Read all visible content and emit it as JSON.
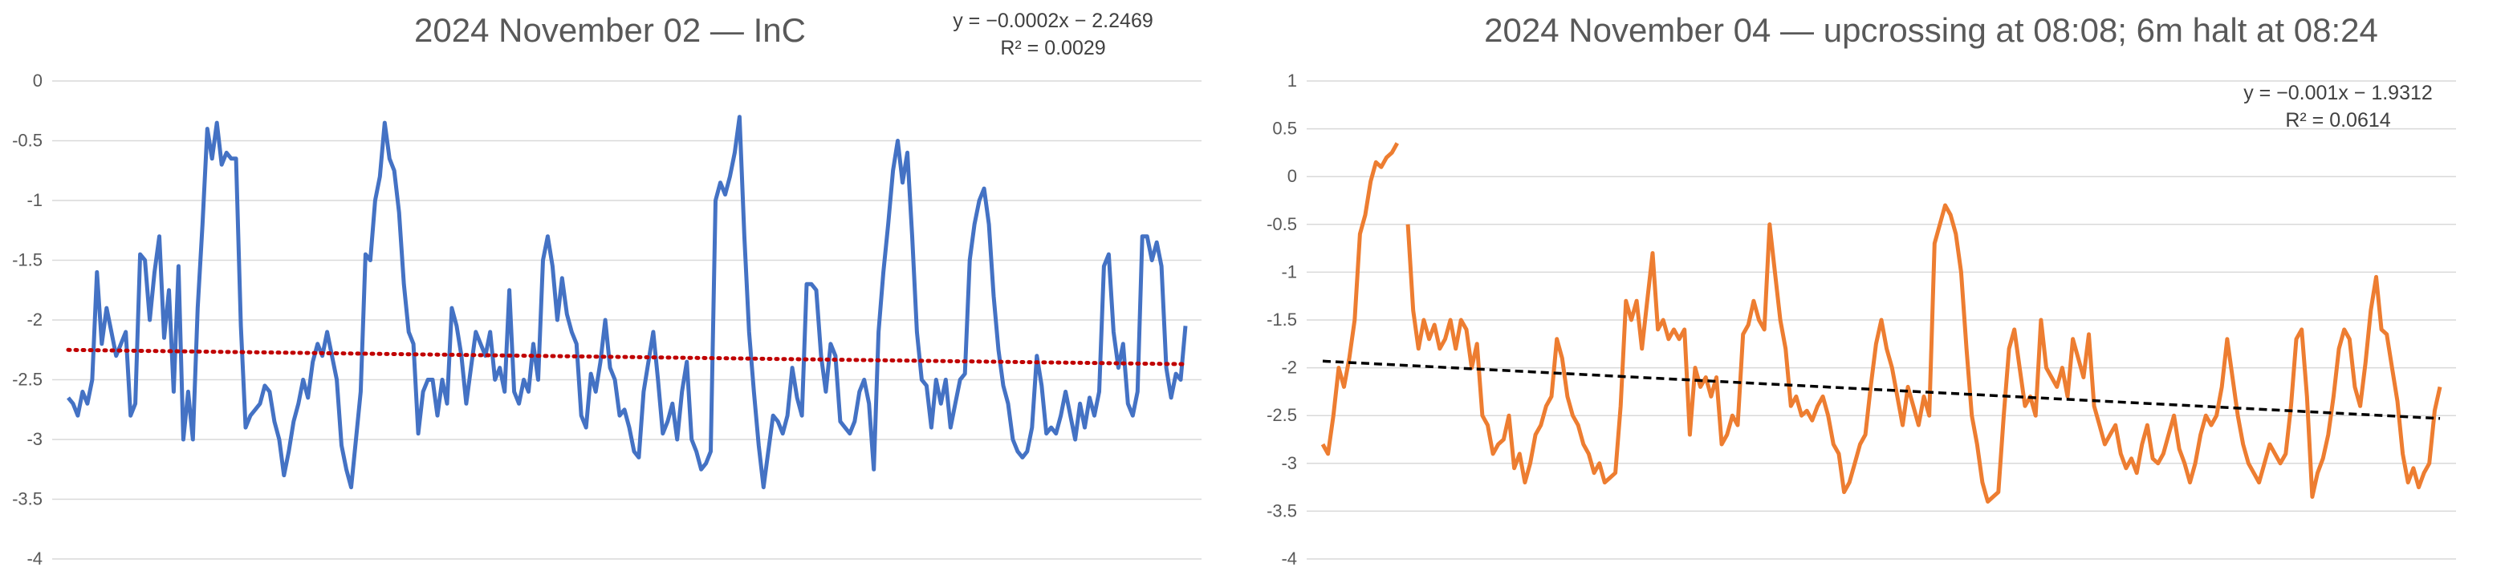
{
  "chart_data": [
    {
      "type": "line",
      "title": "2024 November 02 — InC",
      "xlabel": "",
      "ylabel": "",
      "ylim": [
        -4,
        0
      ],
      "yticks": [
        "0",
        "-0.5",
        "-1",
        "-1.5",
        "-2",
        "-2.5",
        "-3",
        "-3.5",
        "-4"
      ],
      "grid": true,
      "legend": "none",
      "series": [
        {
          "color": "#4472c4",
          "values": [
            -2.65,
            -2.7,
            -2.8,
            -2.6,
            -2.7,
            -2.5,
            -1.6,
            -2.2,
            -1.9,
            -2.1,
            -2.3,
            -2.2,
            -2.1,
            -2.8,
            -2.7,
            -1.45,
            -1.5,
            -2.0,
            -1.6,
            -1.3,
            -2.15,
            -1.75,
            -2.6,
            -1.55,
            -3.0,
            -2.6,
            -3.0,
            -1.9,
            -1.2,
            -0.4,
            -0.65,
            -0.35,
            -0.7,
            -0.6,
            -0.65,
            -0.65,
            -2.05,
            -2.9,
            -2.8,
            -2.75,
            -2.7,
            -2.55,
            -2.6,
            -2.85,
            -3.0,
            -3.3,
            -3.1,
            -2.85,
            -2.7,
            -2.5,
            -2.65,
            -2.35,
            -2.2,
            -2.3,
            -2.1,
            -2.3,
            -2.5,
            -3.05,
            -3.25,
            -3.4,
            -3.0,
            -2.6,
            -1.45,
            -1.5,
            -1.0,
            -0.8,
            -0.35,
            -0.65,
            -0.75,
            -1.1,
            -1.7,
            -2.1,
            -2.2,
            -2.95,
            -2.6,
            -2.5,
            -2.5,
            -2.8,
            -2.5,
            -2.7,
            -1.9,
            -2.05,
            -2.3,
            -2.7,
            -2.4,
            -2.1,
            -2.2,
            -2.3,
            -2.1,
            -2.5,
            -2.4,
            -2.6,
            -1.75,
            -2.6,
            -2.7,
            -2.5,
            -2.6,
            -2.2,
            -2.5,
            -1.5,
            -1.3,
            -1.55,
            -2.0,
            -1.65,
            -1.95,
            -2.1,
            -2.2,
            -2.8,
            -2.9,
            -2.45,
            -2.6,
            -2.35,
            -2.0,
            -2.4,
            -2.5,
            -2.8,
            -2.75,
            -2.9,
            -3.1,
            -3.15,
            -2.6,
            -2.35,
            -2.1,
            -2.5,
            -2.95,
            -2.85,
            -2.7,
            -3.0,
            -2.6,
            -2.35,
            -3.0,
            -3.1,
            -3.25,
            -3.2,
            -3.1,
            -1.0,
            -0.85,
            -0.95,
            -0.8,
            -0.6,
            -0.3,
            -1.3,
            -2.1,
            -2.6,
            -3.05,
            -3.4,
            -3.1,
            -2.8,
            -2.85,
            -2.95,
            -2.8,
            -2.4,
            -2.65,
            -2.8,
            -1.7,
            -1.7,
            -1.75,
            -2.3,
            -2.6,
            -2.2,
            -2.3,
            -2.85,
            -2.9,
            -2.95,
            -2.85,
            -2.6,
            -2.5,
            -2.7,
            -3.25,
            -2.1,
            -1.6,
            -1.2,
            -0.75,
            -0.5,
            -0.85,
            -0.6,
            -1.3,
            -2.1,
            -2.5,
            -2.55,
            -2.9,
            -2.5,
            -2.7,
            -2.5,
            -2.9,
            -2.7,
            -2.5,
            -2.45,
            -1.5,
            -1.2,
            -1.0,
            -0.9,
            -1.2,
            -1.8,
            -2.25,
            -2.55,
            -2.7,
            -3.0,
            -3.1,
            -3.15,
            -3.1,
            -2.9,
            -2.3,
            -2.55,
            -2.95,
            -2.9,
            -2.95,
            -2.8,
            -2.6,
            -2.8,
            -3.0,
            -2.7,
            -2.9,
            -2.65,
            -2.8,
            -2.6,
            -1.55,
            -1.45,
            -2.1,
            -2.4,
            -2.2,
            -2.7,
            -2.8,
            -2.6,
            -1.3,
            -1.3,
            -1.5,
            -1.35,
            -1.55,
            -2.4,
            -2.65,
            -2.45,
            -2.5,
            -2.05
          ]
        },
        {
          "name": "",
          "color": "#c00000",
          "style": "dotted",
          "values": [
            -2.25,
            -2.37
          ]
        }
      ],
      "annotations": [
        "y = −0.0002x − 2.2469",
        "R² = 0.0029"
      ]
    },
    {
      "type": "line",
      "title": "2024 November 04 — upcrossing at 08:08; 6m halt at 08:24",
      "xlabel": "",
      "ylabel": "",
      "ylim": [
        -4,
        1
      ],
      "yticks": [
        "1",
        "0.5",
        "0",
        "-0.5",
        "-1",
        "-1.5",
        "-2",
        "-2.5",
        "-3",
        "-3.5",
        "-4"
      ],
      "grid": true,
      "legend": "none",
      "series": [
        {
          "color": "#ed7d31",
          "values": [
            -2.8,
            -2.9,
            -2.5,
            -2.0,
            -2.2,
            -1.9,
            -1.5,
            -0.6,
            -0.4,
            -0.05,
            0.15,
            0.1,
            0.2,
            0.25,
            0.35,
            null,
            -0.5,
            -1.4,
            -1.8,
            -1.5,
            -1.7,
            -1.55,
            -1.8,
            -1.7,
            -1.5,
            -1.8,
            -1.5,
            -1.6,
            -2.0,
            -1.75,
            -2.5,
            -2.6,
            -2.9,
            -2.8,
            -2.75,
            -2.5,
            -3.05,
            -2.9,
            -3.2,
            -3.0,
            -2.7,
            -2.6,
            -2.4,
            -2.3,
            -1.7,
            -1.9,
            -2.3,
            -2.5,
            -2.6,
            -2.8,
            -2.9,
            -3.1,
            -3.0,
            -3.2,
            -3.15,
            -3.1,
            -2.4,
            -1.3,
            -1.5,
            -1.3,
            -1.8,
            -1.3,
            -0.8,
            -1.6,
            -1.5,
            -1.7,
            -1.6,
            -1.7,
            -1.6,
            -2.7,
            -2.0,
            -2.2,
            -2.1,
            -2.3,
            -2.1,
            -2.8,
            -2.7,
            -2.5,
            -2.6,
            -1.65,
            -1.55,
            -1.3,
            -1.5,
            -1.6,
            -0.5,
            -1.0,
            -1.5,
            -1.8,
            -2.4,
            -2.3,
            -2.5,
            -2.45,
            -2.55,
            -2.4,
            -2.3,
            -2.5,
            -2.8,
            -2.9,
            -3.3,
            -3.2,
            -3.0,
            -2.8,
            -2.7,
            -2.2,
            -1.75,
            -1.5,
            -1.8,
            -2.0,
            -2.3,
            -2.6,
            -2.2,
            -2.4,
            -2.6,
            -2.3,
            -2.5,
            -0.7,
            -0.5,
            -0.3,
            -0.4,
            -0.6,
            -1.0,
            -1.8,
            -2.5,
            -2.8,
            -3.2,
            -3.4,
            -3.35,
            -3.3,
            -2.5,
            -1.8,
            -1.6,
            -2.0,
            -2.4,
            -2.3,
            -2.5,
            -1.5,
            -2.0,
            -2.1,
            -2.2,
            -2.0,
            -2.3,
            -1.7,
            -1.9,
            -2.1,
            -1.65,
            -2.4,
            -2.6,
            -2.8,
            -2.7,
            -2.6,
            -2.9,
            -3.05,
            -2.95,
            -3.1,
            -2.8,
            -2.6,
            -2.95,
            -3.0,
            -2.9,
            -2.7,
            -2.5,
            -2.85,
            -3.0,
            -3.2,
            -3.0,
            -2.7,
            -2.5,
            -2.6,
            -2.5,
            -2.2,
            -1.7,
            -2.1,
            -2.5,
            -2.8,
            -3.0,
            -3.1,
            -3.2,
            -3.0,
            -2.8,
            -2.9,
            -3.0,
            -2.9,
            -2.4,
            -1.7,
            -1.6,
            -2.3,
            -3.35,
            -3.1,
            -2.95,
            -2.7,
            -2.3,
            -1.8,
            -1.6,
            -1.7,
            -2.2,
            -2.4,
            -1.95,
            -1.4,
            -1.05,
            -1.6,
            -1.65,
            -2.0,
            -2.35,
            -2.9,
            -3.2,
            -3.05,
            -3.25,
            -3.1,
            -3.0,
            -2.45,
            -2.2
          ]
        },
        {
          "name": "",
          "color": "#000000",
          "style": "dashed",
          "values": [
            -1.93,
            -2.53
          ]
        }
      ],
      "annotations": [
        "y = −0.001x − 1.9312",
        "R² = 0.0614"
      ]
    }
  ]
}
